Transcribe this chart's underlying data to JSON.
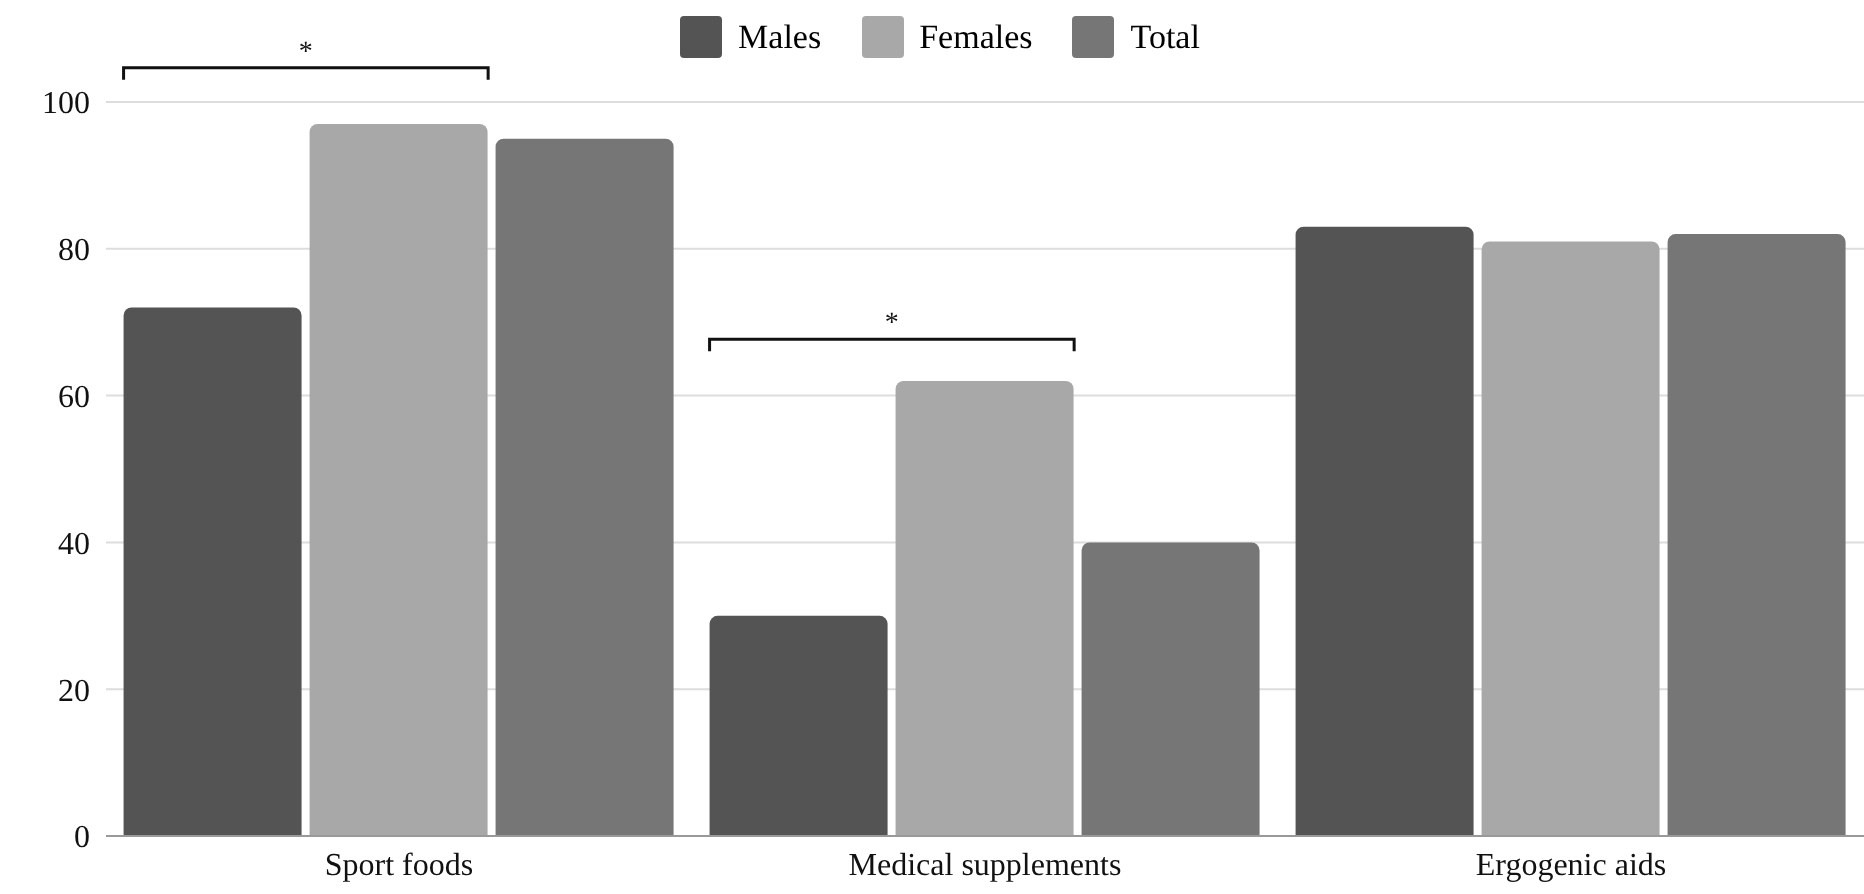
{
  "chart_data": {
    "type": "bar",
    "categories": [
      "Sport foods",
      "Medical supplements",
      "Ergogenic aids"
    ],
    "series": [
      {
        "name": "Males",
        "color": "#545454",
        "values": [
          72,
          30,
          83
        ]
      },
      {
        "name": "Females",
        "color": "#a8a8a8",
        "values": [
          97,
          62,
          81
        ]
      },
      {
        "name": "Total",
        "color": "#767676",
        "values": [
          95,
          40,
          82
        ]
      }
    ],
    "ylim": [
      0,
      100
    ],
    "yticks": [
      0,
      20,
      40,
      60,
      80,
      100
    ],
    "grid": "y",
    "legend": "top",
    "annotations": [
      "*",
      "*"
    ]
  }
}
